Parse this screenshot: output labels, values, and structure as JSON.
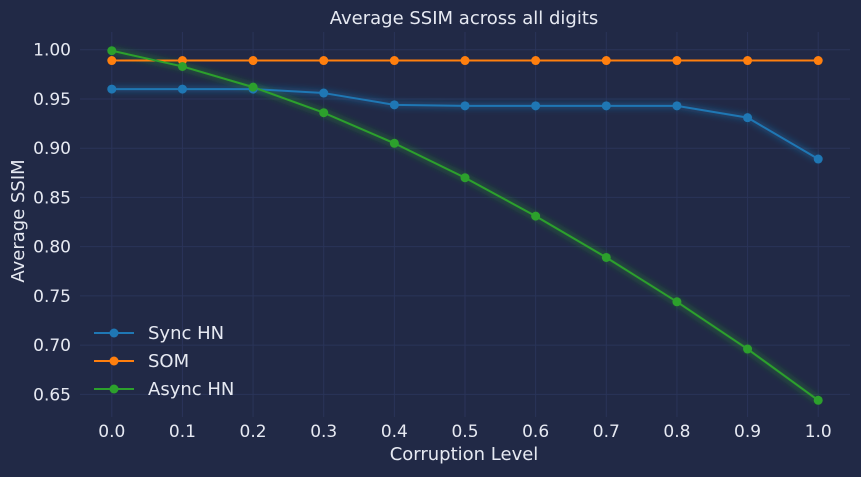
{
  "chart_data": {
    "type": "line",
    "title": "Average SSIM across all digits",
    "xlabel": "Corruption Level",
    "ylabel": "Average SSIM",
    "x": [
      0.0,
      0.1,
      0.2,
      0.3,
      0.4,
      0.5,
      0.6,
      0.7,
      0.8,
      0.9,
      1.0
    ],
    "x_tick_labels": [
      "0.0",
      "0.1",
      "0.2",
      "0.3",
      "0.4",
      "0.5",
      "0.6",
      "0.7",
      "0.8",
      "0.9",
      "1.0"
    ],
    "y_ticks": [
      0.65,
      0.7,
      0.75,
      0.8,
      0.85,
      0.9,
      0.95,
      1.0
    ],
    "y_tick_labels": [
      "0.65",
      "0.70",
      "0.75",
      "0.80",
      "0.85",
      "0.90",
      "0.95",
      "1.00"
    ],
    "xlim": [
      -0.045,
      1.045
    ],
    "ylim": [
      0.627,
      1.018
    ],
    "grid": true,
    "legend_position": "lower-left",
    "series": [
      {
        "name": "Sync HN",
        "color": "#1f77b4",
        "values": [
          0.96,
          0.96,
          0.96,
          0.956,
          0.944,
          0.943,
          0.943,
          0.943,
          0.943,
          0.931,
          0.889
        ]
      },
      {
        "name": "SOM",
        "color": "#ff7f0e",
        "values": [
          0.989,
          0.989,
          0.989,
          0.989,
          0.989,
          0.989,
          0.989,
          0.989,
          0.989,
          0.989,
          0.989
        ]
      },
      {
        "name": "Async HN",
        "color": "#2ca02c",
        "values": [
          0.999,
          0.983,
          0.962,
          0.936,
          0.905,
          0.87,
          0.831,
          0.789,
          0.744,
          0.696,
          0.644
        ]
      }
    ]
  },
  "style": {
    "background": "#212946",
    "grid_color": "#2A3459",
    "text_color": "#e6e9f2"
  }
}
